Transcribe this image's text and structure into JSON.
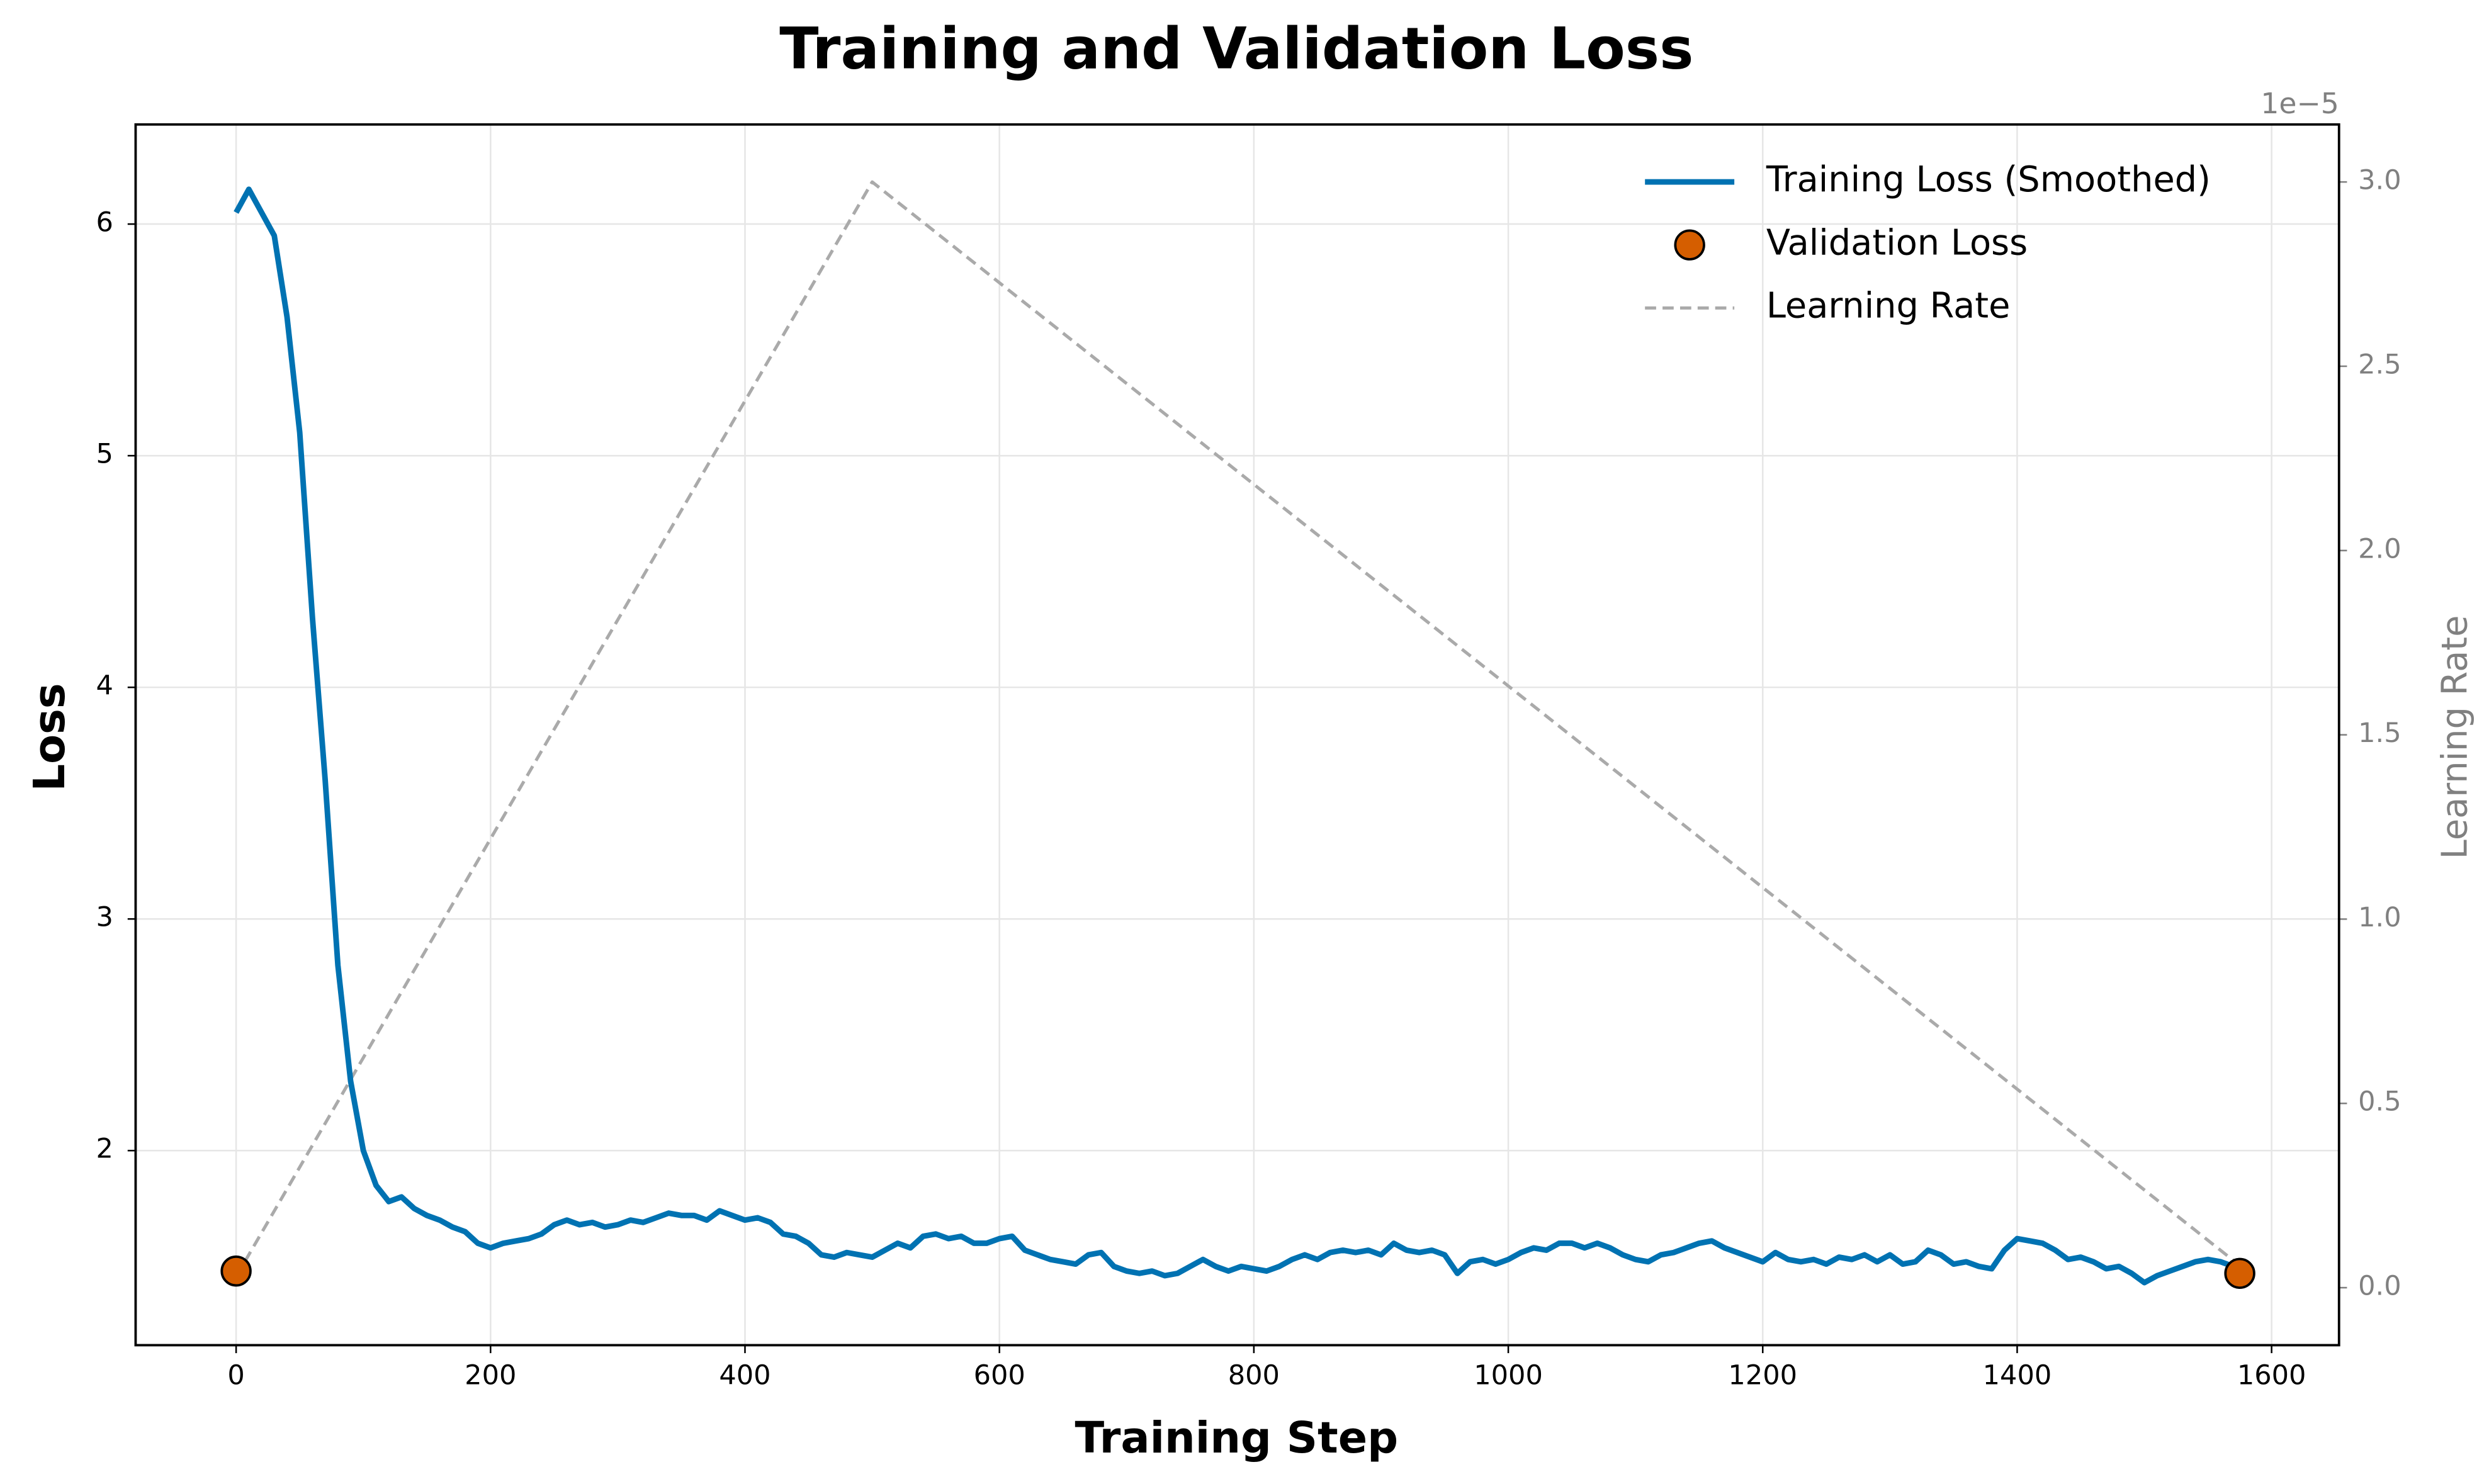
{
  "chart_data": {
    "type": "line",
    "title": "Training and Validation Loss",
    "x_label": "Training Step",
    "y_label": "Loss",
    "y2_label": "Learning Rate",
    "y2_offset_text": "1e−5",
    "xlim": [
      -79,
      1653
    ],
    "ylim": [
      1.16,
      6.43
    ],
    "y2lim": [
      -0.156,
      3.156
    ],
    "xticks": [
      0,
      200,
      400,
      600,
      800,
      1000,
      1200,
      1400,
      1600
    ],
    "yticks": [
      2,
      3,
      4,
      5,
      6
    ],
    "y2ticks": [
      {
        "value": 0,
        "label": "0.0"
      },
      {
        "value": 0.5,
        "label": "0.5"
      },
      {
        "value": 1,
        "label": "1.0"
      },
      {
        "value": 1.5,
        "label": "1.5"
      },
      {
        "value": 2,
        "label": "2.0"
      },
      {
        "value": 2.5,
        "label": "2.5"
      },
      {
        "value": 3,
        "label": "3.0"
      }
    ],
    "grid": true,
    "legend": "upper right",
    "series": [
      {
        "name": "Training Loss (Smoothed)",
        "type": "line",
        "color": "#0072b2",
        "x": [
          0,
          10,
          20,
          30,
          40,
          50,
          60,
          70,
          80,
          90,
          100,
          110,
          120,
          130,
          140,
          150,
          160,
          170,
          180,
          190,
          200,
          210,
          220,
          230,
          240,
          250,
          260,
          270,
          280,
          290,
          300,
          310,
          320,
          330,
          340,
          350,
          360,
          370,
          380,
          390,
          400,
          410,
          420,
          430,
          440,
          450,
          460,
          470,
          480,
          490,
          500,
          510,
          520,
          530,
          540,
          550,
          560,
          570,
          580,
          590,
          600,
          610,
          620,
          630,
          640,
          650,
          660,
          670,
          680,
          690,
          700,
          710,
          720,
          730,
          740,
          750,
          760,
          770,
          780,
          790,
          800,
          810,
          820,
          830,
          840,
          850,
          860,
          870,
          880,
          890,
          900,
          910,
          920,
          930,
          940,
          950,
          960,
          970,
          980,
          990,
          1000,
          1010,
          1020,
          1030,
          1040,
          1050,
          1060,
          1070,
          1080,
          1090,
          1100,
          1110,
          1120,
          1130,
          1140,
          1150,
          1160,
          1170,
          1180,
          1190,
          1200,
          1210,
          1220,
          1230,
          1240,
          1250,
          1260,
          1270,
          1280,
          1290,
          1300,
          1310,
          1320,
          1330,
          1340,
          1350,
          1360,
          1370,
          1380,
          1390,
          1400,
          1410,
          1420,
          1430,
          1440,
          1450,
          1460,
          1470,
          1480,
          1490,
          1500,
          1510,
          1520,
          1530,
          1540,
          1550,
          1560,
          1570
        ],
        "values": [
          6.05,
          6.15,
          6.05,
          5.95,
          5.6,
          5.1,
          4.3,
          3.6,
          2.8,
          2.3,
          2.0,
          1.85,
          1.78,
          1.8,
          1.75,
          1.72,
          1.7,
          1.67,
          1.65,
          1.6,
          1.58,
          1.6,
          1.61,
          1.62,
          1.64,
          1.68,
          1.7,
          1.68,
          1.69,
          1.67,
          1.68,
          1.7,
          1.69,
          1.71,
          1.73,
          1.72,
          1.72,
          1.7,
          1.74,
          1.72,
          1.7,
          1.71,
          1.69,
          1.64,
          1.63,
          1.6,
          1.55,
          1.54,
          1.56,
          1.55,
          1.54,
          1.57,
          1.6,
          1.58,
          1.63,
          1.64,
          1.62,
          1.63,
          1.6,
          1.6,
          1.62,
          1.63,
          1.57,
          1.55,
          1.53,
          1.52,
          1.51,
          1.55,
          1.56,
          1.5,
          1.48,
          1.47,
          1.48,
          1.46,
          1.47,
          1.5,
          1.53,
          1.5,
          1.48,
          1.5,
          1.49,
          1.48,
          1.5,
          1.53,
          1.55,
          1.53,
          1.56,
          1.57,
          1.56,
          1.57,
          1.55,
          1.6,
          1.57,
          1.56,
          1.57,
          1.55,
          1.47,
          1.52,
          1.53,
          1.51,
          1.53,
          1.56,
          1.58,
          1.57,
          1.6,
          1.6,
          1.58,
          1.6,
          1.58,
          1.55,
          1.53,
          1.52,
          1.55,
          1.56,
          1.58,
          1.6,
          1.61,
          1.58,
          1.56,
          1.54,
          1.52,
          1.56,
          1.53,
          1.52,
          1.53,
          1.51,
          1.54,
          1.53,
          1.55,
          1.52,
          1.55,
          1.51,
          1.52,
          1.57,
          1.55,
          1.51,
          1.52,
          1.5,
          1.49,
          1.57,
          1.62,
          1.61,
          1.6,
          1.57,
          1.53,
          1.54,
          1.52,
          1.49,
          1.5,
          1.47,
          1.43,
          1.46,
          1.48,
          1.5,
          1.52,
          1.53,
          1.52,
          1.5
        ]
      },
      {
        "name": "Validation Loss",
        "type": "scatter",
        "color": "#d55e00",
        "x": [
          0,
          1575
        ],
        "values": [
          1.48,
          1.47
        ]
      },
      {
        "name": "Learning Rate",
        "type": "line",
        "style": "dashed",
        "axis": "y2",
        "color": "#aaaaaa",
        "x": [
          0,
          500,
          1575
        ],
        "values": [
          0.03,
          3.0,
          0.06
        ]
      }
    ]
  }
}
